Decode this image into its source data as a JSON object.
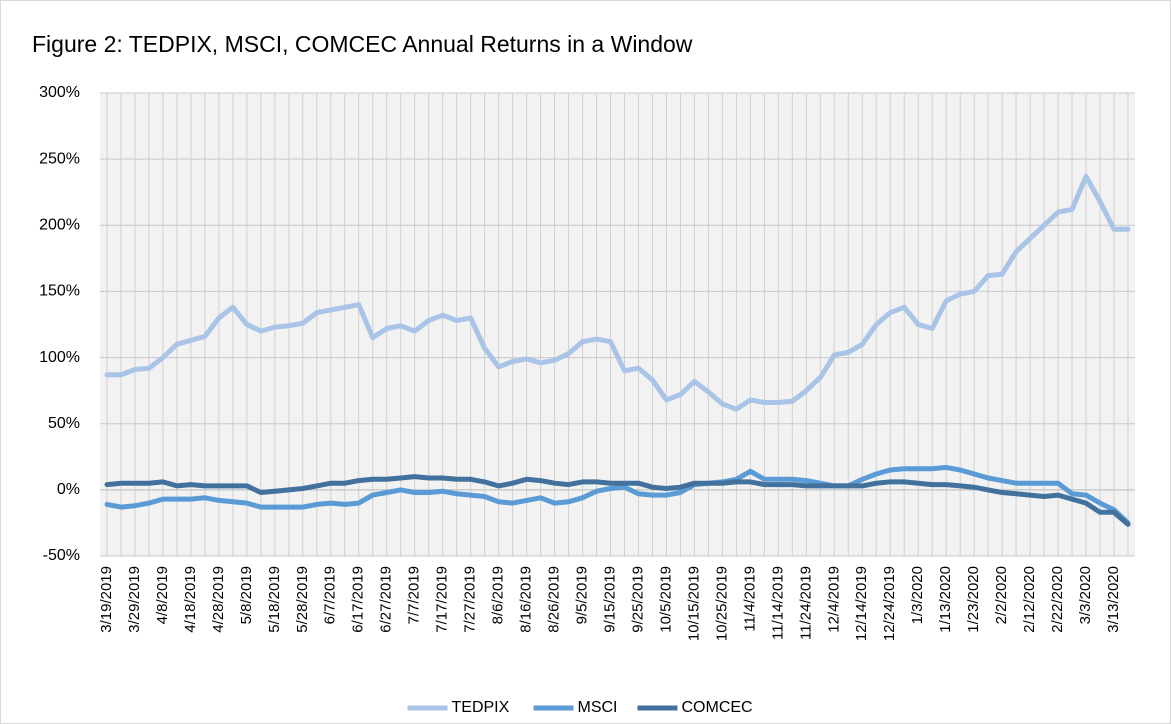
{
  "chart_data": {
    "type": "line",
    "title": "Figure 2: TEDPIX, MSCI, COMCEC Annual Returns in a Window",
    "categories": [
      "3/19/2019",
      null,
      "3/29/2019",
      null,
      "4/8/2019",
      null,
      "4/18/2019",
      null,
      "4/28/2019",
      null,
      "5/8/2019",
      null,
      "5/18/2019",
      null,
      "5/28/2019",
      null,
      "6/7/2019",
      null,
      "6/17/2019",
      null,
      "6/27/2019",
      null,
      "7/7/2019",
      null,
      "7/17/2019",
      null,
      "7/27/2019",
      null,
      "8/6/2019",
      null,
      "8/16/2019",
      null,
      "8/26/2019",
      null,
      "9/5/2019",
      null,
      "9/15/2019",
      null,
      "9/25/2019",
      null,
      "10/5/2019",
      null,
      "10/15/2019",
      null,
      "10/25/2019",
      null,
      "11/4/2019",
      null,
      "11/14/2019",
      null,
      "11/24/2019",
      null,
      "12/4/2019",
      null,
      "12/14/2019",
      null,
      "12/24/2019",
      null,
      "1/3/2020",
      null,
      "1/13/2020",
      null,
      "1/23/2020",
      null,
      "2/2/2020",
      null,
      "2/12/2020",
      null,
      "2/22/2020",
      null,
      "3/3/2020",
      null,
      "3/13/2020",
      null
    ],
    "series": [
      {
        "name": "TEDPIX",
        "color": "#a9c4e6",
        "values": [
          87,
          87,
          91,
          92,
          100,
          110,
          113,
          116,
          130,
          138,
          125,
          120,
          123,
          124,
          126,
          134,
          136,
          138,
          140,
          115,
          122,
          124,
          120,
          128,
          132,
          128,
          130,
          107,
          93,
          97,
          99,
          96,
          98,
          103,
          112,
          114,
          112,
          90,
          92,
          83,
          68,
          72,
          82,
          74,
          65,
          61,
          68,
          66,
          66,
          67,
          75,
          85,
          102,
          104,
          110,
          125,
          134,
          138,
          125,
          122,
          143,
          148,
          150,
          162,
          163,
          180,
          190,
          200,
          210,
          212,
          237,
          218,
          197,
          197
        ]
      },
      {
        "name": "MSCI",
        "color": "#5b9bd5",
        "values": [
          -11,
          -13,
          -12,
          -10,
          -7,
          -7,
          -7,
          -6,
          -8,
          -9,
          -10,
          -13,
          -13,
          -13,
          -13,
          -11,
          -10,
          -11,
          -10,
          -4,
          -2,
          0,
          -2,
          -2,
          -1,
          -3,
          -4,
          -5,
          -9,
          -10,
          -8,
          -6,
          -10,
          -9,
          -6,
          -1,
          1,
          2,
          -3,
          -4,
          -4,
          -2,
          4,
          5,
          6,
          8,
          14,
          8,
          8,
          8,
          7,
          5,
          3,
          3,
          8,
          12,
          15,
          16,
          16,
          16,
          17,
          15,
          12,
          9,
          7,
          5,
          5,
          5,
          5,
          -3,
          -4,
          -10,
          -15,
          -25
        ]
      },
      {
        "name": "COMCEC",
        "color": "#41719c",
        "values": [
          4,
          5,
          5,
          5,
          6,
          3,
          4,
          3,
          3,
          3,
          3,
          -2,
          -1,
          0,
          1,
          3,
          5,
          5,
          7,
          8,
          8,
          9,
          10,
          9,
          9,
          8,
          8,
          6,
          3,
          5,
          8,
          7,
          5,
          4,
          6,
          6,
          5,
          5,
          5,
          2,
          1,
          2,
          5,
          5,
          5,
          6,
          6,
          4,
          4,
          4,
          3,
          3,
          3,
          3,
          3,
          5,
          6,
          6,
          5,
          4,
          4,
          3,
          2,
          0,
          -2,
          -3,
          -4,
          -5,
          -4,
          -7,
          -10,
          -17,
          -17,
          -26
        ]
      }
    ],
    "ylim": [
      -50,
      300
    ],
    "yticks": [
      {
        "value": -50,
        "label": "-50%"
      },
      {
        "value": 0,
        "label": "0%"
      },
      {
        "value": 50,
        "label": "50%"
      },
      {
        "value": 100,
        "label": "100%"
      },
      {
        "value": 150,
        "label": "150%"
      },
      {
        "value": 200,
        "label": "200%"
      },
      {
        "value": 250,
        "label": "250%"
      },
      {
        "value": 300,
        "label": "300%"
      }
    ],
    "grid": true,
    "legend": "bottom"
  }
}
